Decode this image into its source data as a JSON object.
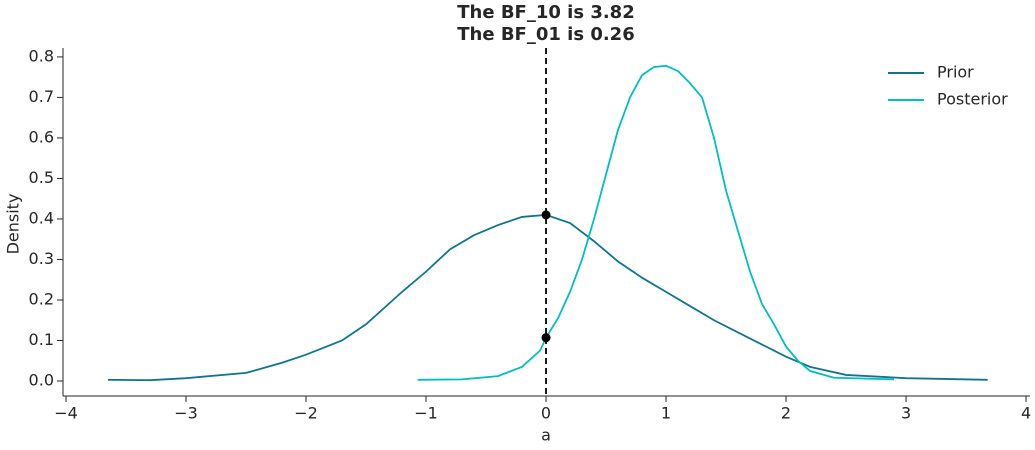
{
  "chart_data": {
    "type": "line",
    "title": [
      "The BF_10 is 3.82",
      "The BF_01 is 0.26"
    ],
    "xlabel": "a",
    "ylabel": "Density",
    "xlim": [
      -4.025,
      4.033
    ],
    "ylim": [
      -0.037,
      0.822
    ],
    "xticks": [
      {
        "value": -4,
        "label": "−4"
      },
      {
        "value": -3,
        "label": "−3"
      },
      {
        "value": -2,
        "label": "−2"
      },
      {
        "value": -1,
        "label": "−1"
      },
      0,
      1,
      2,
      3,
      4
    ],
    "yticks": [
      {
        "value": 0,
        "label": "0.0"
      },
      0.1,
      0.2,
      0.3,
      0.4,
      0.5,
      0.6,
      0.7,
      0.8
    ],
    "legend": "upper right",
    "series": [
      {
        "name": "Prior",
        "color": "#107591",
        "x": [
          -3.65,
          -3.3,
          -3,
          -2.5,
          -2.2,
          -2,
          -1.7,
          -1.5,
          -1.2,
          -1,
          -0.8,
          -0.6,
          -0.4,
          -0.2,
          0,
          0.2,
          0.4,
          0.6,
          0.8,
          1,
          1.2,
          1.4,
          1.6,
          1.8,
          2,
          2.2,
          2.5,
          3,
          3.68
        ],
        "values": [
          0.003,
          0.002,
          0.007,
          0.02,
          0.045,
          0.065,
          0.1,
          0.14,
          0.22,
          0.27,
          0.325,
          0.36,
          0.385,
          0.405,
          0.41,
          0.39,
          0.345,
          0.295,
          0.255,
          0.22,
          0.185,
          0.15,
          0.12,
          0.09,
          0.06,
          0.035,
          0.015,
          0.007,
          0.003
        ]
      },
      {
        "name": "Posterior",
        "color": "#00bfbf",
        "x": [
          -1.07,
          -0.7,
          -0.4,
          -0.2,
          -0.05,
          0,
          0.1,
          0.2,
          0.3,
          0.4,
          0.5,
          0.6,
          0.7,
          0.8,
          0.9,
          1,
          1.1,
          1.2,
          1.3,
          1.4,
          1.5,
          1.6,
          1.7,
          1.8,
          1.9,
          2.0,
          2.1,
          2.2,
          2.4,
          2.9
        ],
        "values": [
          0.003,
          0.004,
          0.012,
          0.035,
          0.075,
          0.107,
          0.155,
          0.22,
          0.3,
          0.4,
          0.51,
          0.62,
          0.7,
          0.755,
          0.775,
          0.778,
          0.765,
          0.735,
          0.7,
          0.6,
          0.47,
          0.37,
          0.27,
          0.19,
          0.14,
          0.085,
          0.05,
          0.025,
          0.008,
          0.004
        ]
      }
    ],
    "points": {
      "color": "#000000",
      "x": [
        0,
        0
      ],
      "values": [
        0.41,
        0.107
      ]
    },
    "vline": {
      "x": 0,
      "color": "#000000"
    }
  }
}
